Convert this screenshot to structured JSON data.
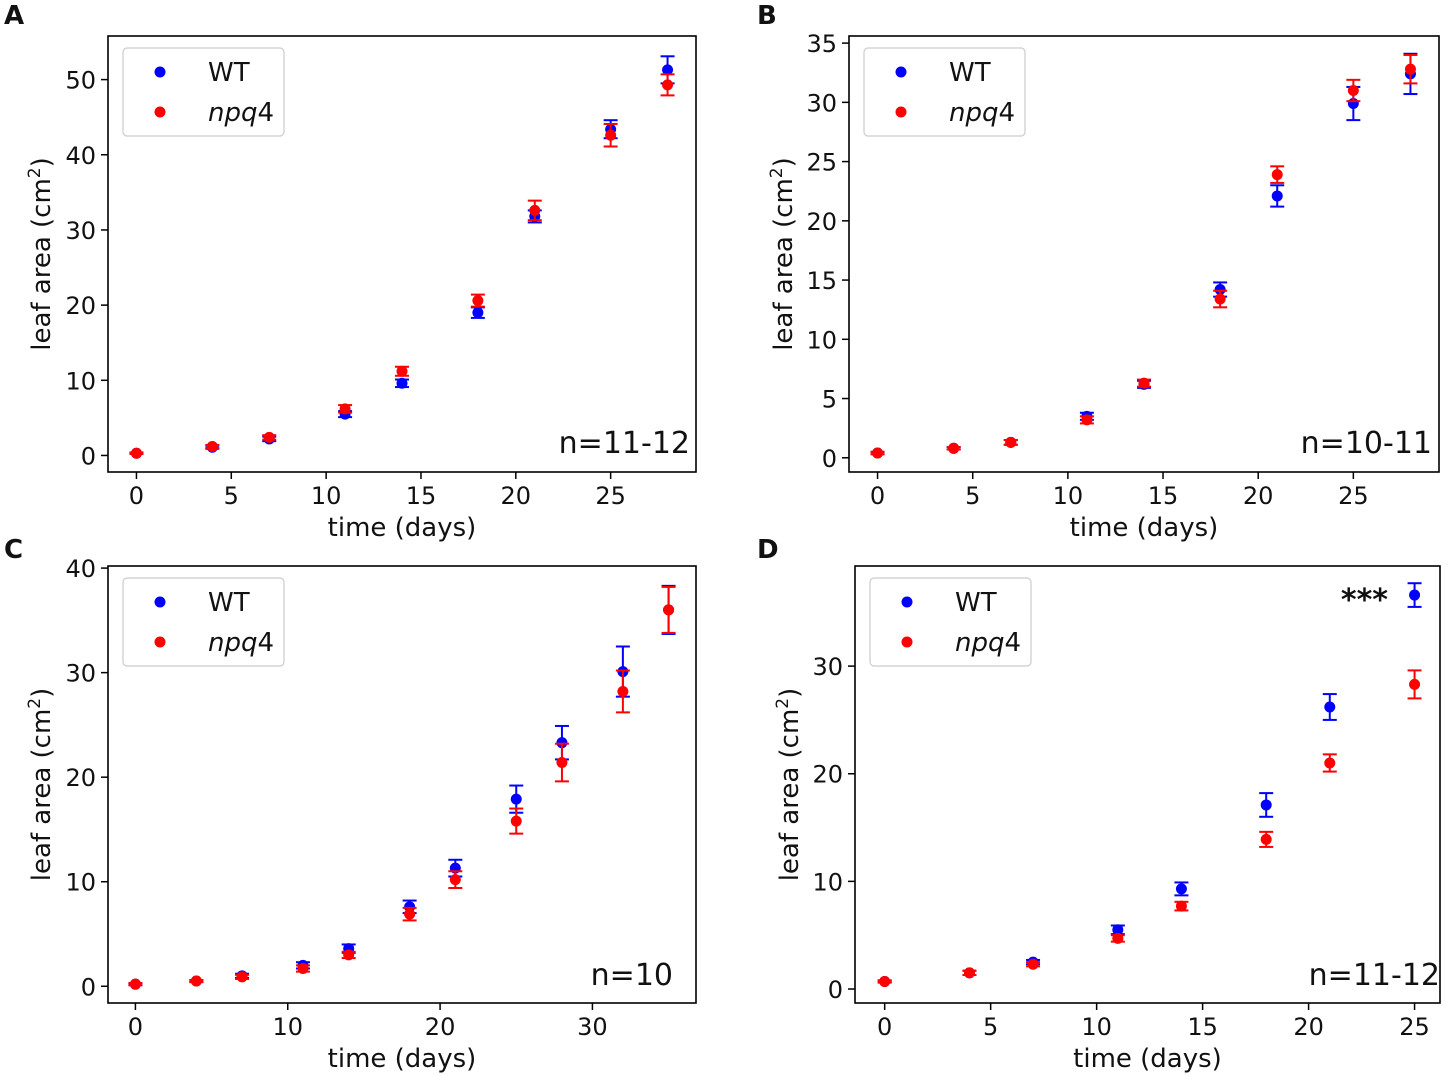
{
  "chart_data": [
    {
      "panel": "A",
      "type": "scatter",
      "xlabel": "time (days)",
      "ylabel": "leaf area (cm",
      "ylabel_sup": "2",
      "ylabel_end": ")",
      "xlim": [
        -1.5,
        29.5
      ],
      "ylim": [
        -2.2,
        55.8
      ],
      "xticks": [
        0,
        5,
        10,
        15,
        20,
        25
      ],
      "yticks": [
        0,
        10,
        20,
        30,
        40,
        50
      ],
      "legend_position": "top-left",
      "annotation": "n=11-12",
      "significance": "",
      "series": [
        {
          "name": "WT",
          "italic": false,
          "color": "#0000ff",
          "x": [
            0,
            4,
            7,
            11,
            14,
            18,
            21,
            25,
            28
          ],
          "y": [
            0.3,
            1.1,
            2.2,
            5.5,
            9.6,
            19.0,
            31.8,
            43.4,
            51.3
          ],
          "err": [
            0.1,
            0.2,
            0.3,
            0.4,
            0.5,
            0.7,
            0.8,
            1.2,
            1.8
          ]
        },
        {
          "name": "npq4",
          "italic": true,
          "color": "#ff0000",
          "x": [
            0,
            4,
            7,
            11,
            14,
            18,
            21,
            25,
            28
          ],
          "y": [
            0.3,
            1.2,
            2.4,
            6.2,
            11.2,
            20.6,
            32.6,
            42.6,
            49.3
          ],
          "err": [
            0.1,
            0.2,
            0.3,
            0.5,
            0.6,
            0.8,
            1.3,
            1.5,
            1.4
          ]
        }
      ]
    },
    {
      "panel": "B",
      "type": "scatter",
      "xlabel": "time (days)",
      "ylabel": "leaf area (cm",
      "ylabel_sup": "2",
      "ylabel_end": ")",
      "xlim": [
        -1.5,
        29.5
      ],
      "ylim": [
        -1.2,
        35.6
      ],
      "xticks": [
        0,
        5,
        10,
        15,
        20,
        25
      ],
      "yticks": [
        0,
        5,
        10,
        15,
        20,
        25,
        30,
        35
      ],
      "legend_position": "top-left",
      "annotation": "n=10-11",
      "significance": "",
      "series": [
        {
          "name": "WT",
          "italic": false,
          "color": "#0000ff",
          "x": [
            0,
            4,
            7,
            11,
            14,
            18,
            21,
            25,
            28
          ],
          "y": [
            0.4,
            0.8,
            1.3,
            3.5,
            6.2,
            14.2,
            22.1,
            29.9,
            32.4
          ],
          "err": [
            0.1,
            0.1,
            0.2,
            0.3,
            0.3,
            0.6,
            0.9,
            1.4,
            1.7
          ]
        },
        {
          "name": "npq4",
          "italic": true,
          "color": "#ff0000",
          "x": [
            0,
            4,
            7,
            11,
            14,
            18,
            21,
            25,
            28
          ],
          "y": [
            0.4,
            0.8,
            1.3,
            3.2,
            6.3,
            13.4,
            23.9,
            31.0,
            32.8
          ],
          "err": [
            0.1,
            0.1,
            0.2,
            0.3,
            0.3,
            0.7,
            0.7,
            0.9,
            1.2
          ]
        }
      ]
    },
    {
      "panel": "C",
      "type": "scatter",
      "xlabel": "time (days)",
      "ylabel": "leaf area (cm",
      "ylabel_sup": "2",
      "ylabel_end": ")",
      "xlim": [
        -1.8,
        36.8
      ],
      "ylim": [
        -1.6,
        40.2
      ],
      "xticks": [
        0,
        10,
        20,
        30
      ],
      "yticks": [
        0,
        10,
        20,
        30,
        40
      ],
      "legend_position": "top-left",
      "annotation": "n=10",
      "significance": "",
      "series": [
        {
          "name": "WT",
          "italic": false,
          "color": "#0000ff",
          "x": [
            0,
            4,
            7,
            11,
            14,
            18,
            21,
            25,
            28,
            32,
            35
          ],
          "y": [
            0.2,
            0.5,
            1.0,
            2.0,
            3.6,
            7.6,
            11.3,
            17.9,
            23.3,
            30.1,
            36.0
          ],
          "err": [
            0.1,
            0.1,
            0.2,
            0.3,
            0.4,
            0.6,
            0.8,
            1.3,
            1.6,
            2.4,
            2.3
          ]
        },
        {
          "name": "npq4",
          "italic": true,
          "color": "#ff0000",
          "x": [
            0,
            4,
            7,
            11,
            14,
            18,
            21,
            25,
            28,
            32,
            35
          ],
          "y": [
            0.2,
            0.5,
            0.9,
            1.7,
            3.0,
            6.9,
            10.2,
            15.8,
            21.4,
            28.2,
            36.0
          ],
          "err": [
            0.1,
            0.1,
            0.2,
            0.3,
            0.3,
            0.6,
            0.8,
            1.2,
            1.8,
            2.0,
            2.2
          ]
        }
      ]
    },
    {
      "panel": "D",
      "type": "scatter",
      "xlabel": "time (days)",
      "ylabel": "leaf area (cm",
      "ylabel_sup": "2",
      "ylabel_end": ")",
      "xlim": [
        -1.4,
        26.2
      ],
      "ylim": [
        -1.3,
        39.3
      ],
      "xticks": [
        0,
        5,
        10,
        15,
        20,
        25
      ],
      "yticks": [
        0,
        10,
        20,
        30
      ],
      "legend_position": "top-left",
      "annotation": "n=11-12",
      "significance": "***",
      "series": [
        {
          "name": "WT",
          "italic": false,
          "color": "#0000ff",
          "x": [
            0,
            4,
            7,
            11,
            14,
            18,
            21,
            25
          ],
          "y": [
            0.7,
            1.5,
            2.5,
            5.5,
            9.3,
            17.1,
            26.2,
            36.6
          ],
          "err": [
            0.1,
            0.2,
            0.2,
            0.4,
            0.6,
            1.1,
            1.2,
            1.1
          ]
        },
        {
          "name": "npq4",
          "italic": true,
          "color": "#ff0000",
          "x": [
            0,
            4,
            7,
            11,
            14,
            18,
            21,
            25
          ],
          "y": [
            0.7,
            1.5,
            2.3,
            4.7,
            7.7,
            13.9,
            21.0,
            28.3
          ],
          "err": [
            0.1,
            0.2,
            0.2,
            0.3,
            0.4,
            0.7,
            0.8,
            1.3
          ]
        }
      ]
    }
  ]
}
